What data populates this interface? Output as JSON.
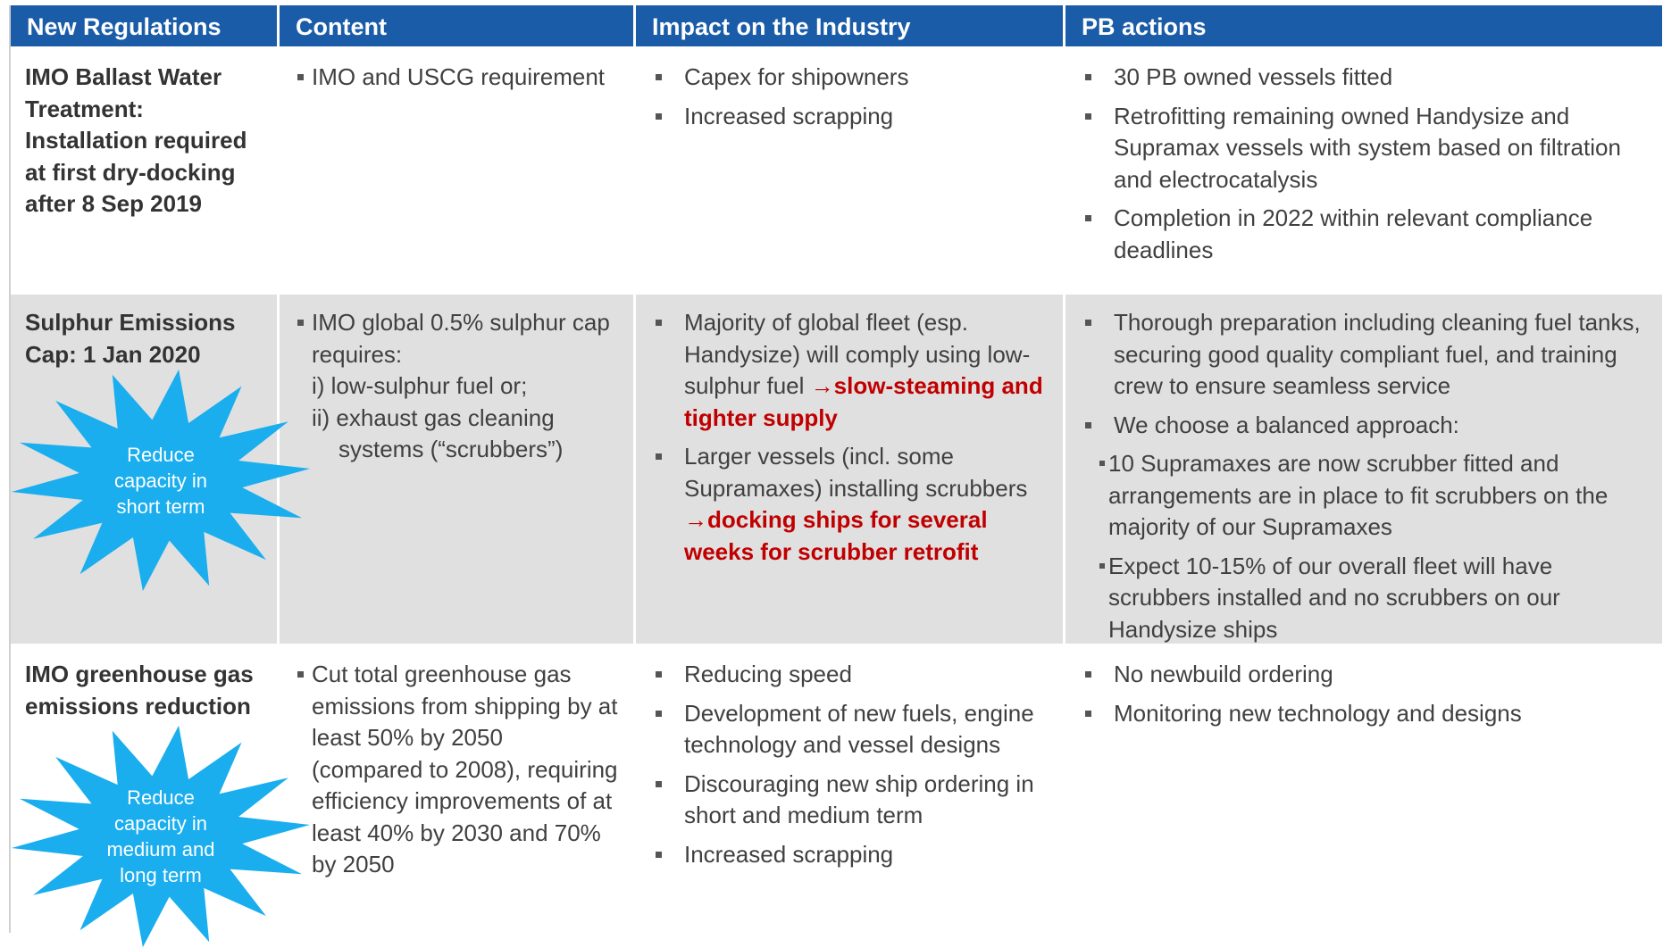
{
  "header": {
    "columns": [
      "New Regulations",
      "Content",
      "Impact on the Industry",
      "PB actions"
    ]
  },
  "rows": [
    {
      "regulation": "IMO Ballast Water Treatment: Installation required at first dry-docking after 8 Sep 2019",
      "content": [
        {
          "text": "IMO and USCG requirement",
          "lines": []
        }
      ],
      "impact": [
        {
          "text": "Capex for shipowners"
        },
        {
          "text": "Increased scrapping"
        }
      ],
      "actions": [
        {
          "text": "30 PB owned vessels fitted",
          "sub": []
        },
        {
          "text": "Retrofitting remaining owned Handysize and Supramax vessels with system based on filtration and electrocatalysis",
          "sub": []
        },
        {
          "text": "Completion in 2022 within relevant compliance deadlines",
          "sub": []
        }
      ]
    },
    {
      "regulation": "Sulphur Emissions Cap: 1 Jan 2020",
      "starburst": "Reduce capacity in short term",
      "content": [
        {
          "text": "IMO global 0.5% sulphur cap requires:",
          "lines": [
            "i) low-sulphur fuel or;",
            "ii) exhaust gas cleaning systems (“scrubbers”)"
          ]
        }
      ],
      "impact": [
        {
          "text": "Majority of global fleet (esp. Handysize) will comply using low-sulphur fuel ",
          "highlight": "→slow-steaming and tighter supply"
        },
        {
          "text": "Larger vessels (incl. some Supramaxes) installing scrubbers ",
          "highlight": "→docking ships for several weeks for scrubber retrofit"
        }
      ],
      "actions": [
        {
          "text": "Thorough preparation including cleaning fuel tanks, securing good quality compliant fuel, and training crew to ensure seamless service",
          "sub": []
        },
        {
          "text": "We choose a balanced approach:",
          "sub": [
            "10 Supramaxes are now scrubber fitted and arrangements are in place to fit scrubbers on the majority of our Supramaxes",
            "Expect 10-15% of our overall fleet will have scrubbers installed and no scrubbers on our Handysize ships"
          ]
        }
      ]
    },
    {
      "regulation": "IMO greenhouse gas emissions reduction",
      "starburst": "Reduce capacity in medium and long term",
      "content": [
        {
          "text": "Cut total greenhouse gas emissions from shipping by at least 50% by 2050 (compared to 2008), requiring efficiency improvements of at least 40% by 2030 and 70% by 2050",
          "lines": []
        }
      ],
      "impact": [
        {
          "text": "Reducing speed"
        },
        {
          "text": "Development of new fuels, engine technology and vessel designs"
        },
        {
          "text": "Discouraging new ship ordering in short and medium term"
        },
        {
          "text": "Increased scrapping"
        }
      ],
      "actions": [
        {
          "text": "No newbuild ordering",
          "sub": []
        },
        {
          "text": "Monitoring new technology and designs",
          "sub": []
        }
      ]
    }
  ]
}
